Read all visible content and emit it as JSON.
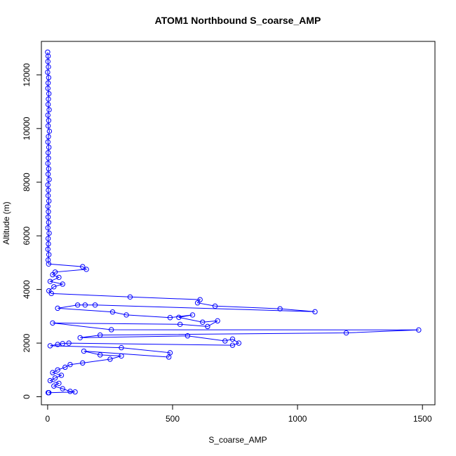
{
  "chart_data": {
    "type": "scatter",
    "title": "ATOM1 Northbound S_coarse_AMP",
    "xlabel": "S_coarse_AMP",
    "ylabel": "Altitude (m)",
    "xlim": [
      -25,
      1550
    ],
    "ylim": [
      -300,
      13250
    ],
    "x_ticks": [
      0,
      500,
      1000,
      1500
    ],
    "y_ticks": [
      0,
      2000,
      4000,
      6000,
      8000,
      10000,
      12000
    ],
    "grid": false,
    "legend": "none",
    "marker": "open-circle",
    "connected": true,
    "series_color": "#0000ff",
    "series": [
      {
        "name": "",
        "points": [
          [
            0,
            12850
          ],
          [
            2,
            12700
          ],
          [
            1,
            12500
          ],
          [
            3,
            12300
          ],
          [
            0,
            12100
          ],
          [
            4,
            11900
          ],
          [
            2,
            11700
          ],
          [
            1,
            11500
          ],
          [
            5,
            11300
          ],
          [
            3,
            11100
          ],
          [
            2,
            10900
          ],
          [
            6,
            10700
          ],
          [
            1,
            10500
          ],
          [
            4,
            10300
          ],
          [
            2,
            10100
          ],
          [
            7,
            9900
          ],
          [
            3,
            9700
          ],
          [
            1,
            9500
          ],
          [
            5,
            9300
          ],
          [
            2,
            9100
          ],
          [
            3,
            8900
          ],
          [
            1,
            8700
          ],
          [
            4,
            8500
          ],
          [
            2,
            8300
          ],
          [
            6,
            8100
          ],
          [
            1,
            7900
          ],
          [
            3,
            7700
          ],
          [
            2,
            7500
          ],
          [
            5,
            7300
          ],
          [
            1,
            7100
          ],
          [
            3,
            6900
          ],
          [
            2,
            6700
          ],
          [
            4,
            6500
          ],
          [
            1,
            6300
          ],
          [
            6,
            6100
          ],
          [
            2,
            5900
          ],
          [
            3,
            5700
          ],
          [
            1,
            5500
          ],
          [
            5,
            5300
          ],
          [
            2,
            5100
          ],
          [
            4,
            4950
          ],
          [
            140,
            4850
          ],
          [
            155,
            4750
          ],
          [
            30,
            4650
          ],
          [
            20,
            4550
          ],
          [
            45,
            4450
          ],
          [
            10,
            4300
          ],
          [
            60,
            4200
          ],
          [
            25,
            4100
          ],
          [
            5,
            3950
          ],
          [
            15,
            3850
          ],
          [
            330,
            3720
          ],
          [
            610,
            3620
          ],
          [
            600,
            3500
          ],
          [
            670,
            3380
          ],
          [
            930,
            3280
          ],
          [
            1070,
            3170
          ],
          [
            190,
            3420
          ],
          [
            150,
            3420
          ],
          [
            120,
            3420
          ],
          [
            40,
            3300
          ],
          [
            260,
            3160
          ],
          [
            315,
            3050
          ],
          [
            490,
            2950
          ],
          [
            580,
            3050
          ],
          [
            525,
            2960
          ],
          [
            620,
            2780
          ],
          [
            680,
            2830
          ],
          [
            640,
            2620
          ],
          [
            530,
            2700
          ],
          [
            20,
            2750
          ],
          [
            255,
            2500
          ],
          [
            1485,
            2490
          ],
          [
            1195,
            2380
          ],
          [
            210,
            2300
          ],
          [
            130,
            2200
          ],
          [
            560,
            2270
          ],
          [
            710,
            2080
          ],
          [
            740,
            2150
          ],
          [
            765,
            2000
          ],
          [
            740,
            1920
          ],
          [
            85,
            2000
          ],
          [
            60,
            1980
          ],
          [
            40,
            1950
          ],
          [
            10,
            1900
          ],
          [
            295,
            1830
          ],
          [
            490,
            1640
          ],
          [
            485,
            1480
          ],
          [
            145,
            1700
          ],
          [
            210,
            1560
          ],
          [
            295,
            1520
          ],
          [
            250,
            1400
          ],
          [
            140,
            1260
          ],
          [
            90,
            1200
          ],
          [
            70,
            1100
          ],
          [
            40,
            1000
          ],
          [
            20,
            900
          ],
          [
            55,
            800
          ],
          [
            30,
            700
          ],
          [
            10,
            600
          ],
          [
            45,
            500
          ],
          [
            25,
            400
          ],
          [
            60,
            300
          ],
          [
            90,
            200
          ],
          [
            110,
            180
          ],
          [
            5,
            150
          ],
          [
            2,
            150
          ]
        ]
      }
    ]
  }
}
